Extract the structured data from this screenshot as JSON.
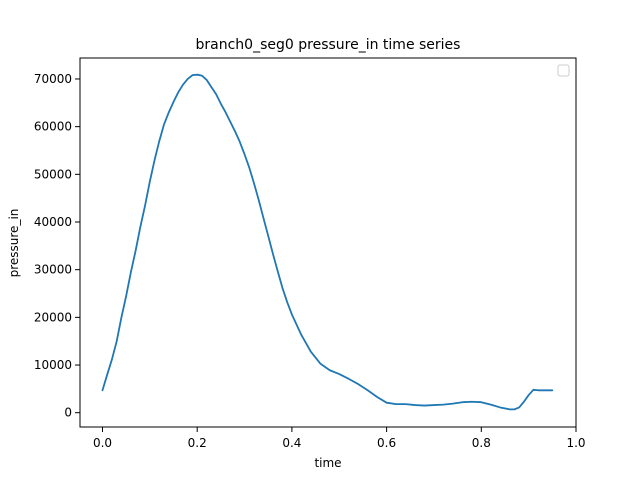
{
  "chart_data": {
    "type": "line",
    "title": "branch0_seg0 pressure_in time series",
    "xlabel": "time",
    "ylabel": "pressure_in",
    "xlim": [
      -0.0475,
      1.0
    ],
    "ylim": [
      -3000,
      74400
    ],
    "xticks": [
      0.0,
      0.2,
      0.4,
      0.6,
      0.8,
      1.0
    ],
    "xtick_labels": [
      "0.0",
      "0.2",
      "0.4",
      "0.6",
      "0.8",
      "1.0"
    ],
    "yticks": [
      0,
      10000,
      20000,
      30000,
      40000,
      50000,
      60000,
      70000
    ],
    "ytick_labels": [
      "0",
      "10000",
      "20000",
      "30000",
      "40000",
      "50000",
      "60000",
      "70000"
    ],
    "grid": false,
    "legend": {
      "location": "upper right",
      "entries": []
    },
    "series": [
      {
        "color": "#1f77b4",
        "x": [
          0.0,
          0.01,
          0.02,
          0.03,
          0.04,
          0.05,
          0.06,
          0.07,
          0.08,
          0.09,
          0.1,
          0.11,
          0.12,
          0.13,
          0.14,
          0.15,
          0.16,
          0.17,
          0.18,
          0.19,
          0.2,
          0.21,
          0.22,
          0.23,
          0.24,
          0.25,
          0.26,
          0.27,
          0.28,
          0.29,
          0.3,
          0.31,
          0.32,
          0.33,
          0.34,
          0.35,
          0.36,
          0.37,
          0.38,
          0.39,
          0.4,
          0.42,
          0.44,
          0.46,
          0.48,
          0.5,
          0.52,
          0.54,
          0.56,
          0.58,
          0.6,
          0.62,
          0.64,
          0.66,
          0.68,
          0.7,
          0.72,
          0.74,
          0.76,
          0.78,
          0.8,
          0.82,
          0.84,
          0.86,
          0.87,
          0.88,
          0.89,
          0.9,
          0.91,
          0.92,
          0.93,
          0.94,
          0.95
        ],
        "y": [
          4700,
          8000,
          11200,
          15000,
          20000,
          24500,
          29500,
          34000,
          39000,
          43500,
          48500,
          53000,
          57000,
          60500,
          63000,
          65200,
          67200,
          68800,
          70000,
          70800,
          70900,
          70700,
          69800,
          68300,
          66800,
          64800,
          63000,
          61000,
          59000,
          56800,
          54200,
          51400,
          48100,
          44600,
          40800,
          37100,
          33300,
          29700,
          26200,
          23200,
          20600,
          16300,
          12800,
          10300,
          8900,
          8100,
          7100,
          6000,
          4700,
          3300,
          2100,
          1800,
          1800,
          1600,
          1500,
          1600,
          1700,
          1900,
          2200,
          2300,
          2200,
          1700,
          1100,
          700,
          700,
          1100,
          2300,
          3700,
          4800,
          4700,
          4700,
          4700,
          4700
        ]
      }
    ]
  }
}
